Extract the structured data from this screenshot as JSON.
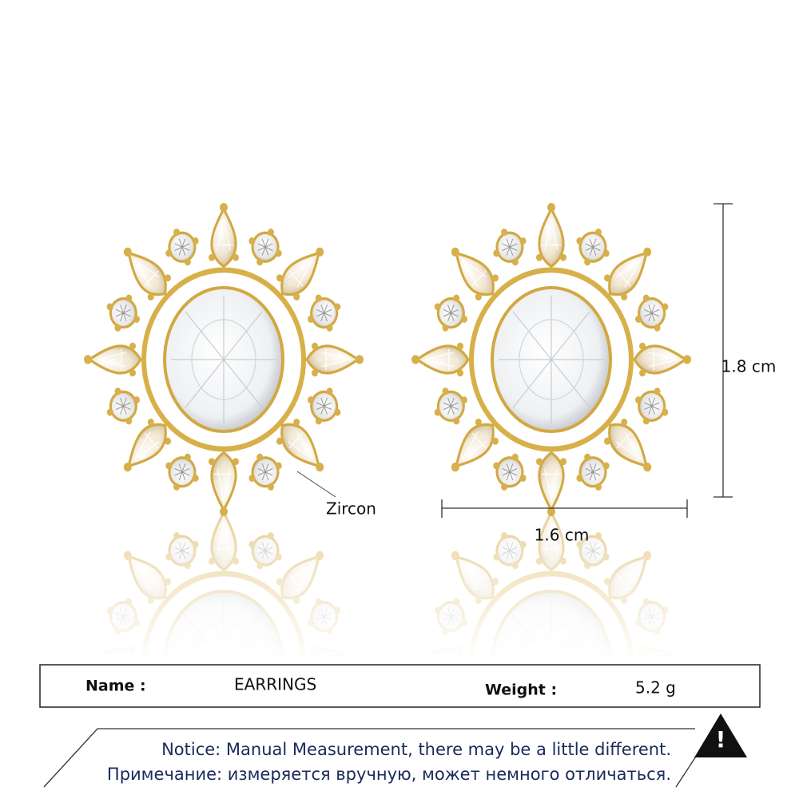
{
  "annotations": {
    "material": "Zircon",
    "height": "1.8 cm",
    "width": "1.6 cm"
  },
  "info": {
    "name_label": "Name :",
    "name": "EARRINGS",
    "weight_label": "Weight :",
    "weight": "5.2 g"
  },
  "notice": {
    "icon": "!",
    "en": "Notice: Manual Measurement, there may be a little different.",
    "ru": "Примечание: измеряется вручную, может немного отличаться."
  }
}
